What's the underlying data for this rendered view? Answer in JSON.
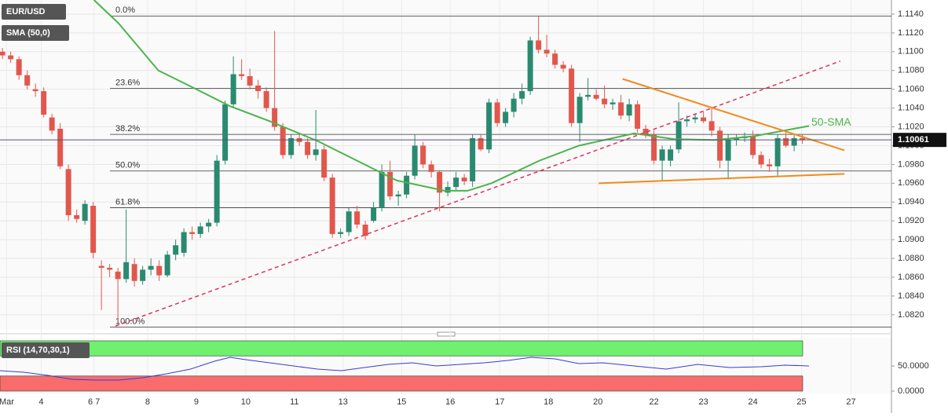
{
  "chart_data": [
    {
      "type": "candlestick",
      "title": "EUR/USD",
      "colors": {
        "up": "#2a8a70",
        "down": "#e2574c"
      },
      "xlim": [
        -0.3,
        107.8
      ],
      "ylim": [
        1.0804,
        1.1155
      ],
      "yticks": [
        {
          "value": 1.082,
          "label": "1.0820"
        },
        {
          "value": 1.084,
          "label": "1.0840"
        },
        {
          "value": 1.086,
          "label": "1.0860"
        },
        {
          "value": 1.088,
          "label": "1.0880"
        },
        {
          "value": 1.09,
          "label": "1.0900"
        },
        {
          "value": 1.092,
          "label": "1.0920"
        },
        {
          "value": 1.094,
          "label": "1.0940"
        },
        {
          "value": 1.096,
          "label": "1.0960"
        },
        {
          "value": 1.098,
          "label": "1.0980"
        },
        {
          "value": 1.1,
          "label": "1.1000"
        },
        {
          "value": 1.102,
          "label": "1.1020"
        },
        {
          "value": 1.104,
          "label": "1.1040"
        },
        {
          "value": 1.106,
          "label": "1.1060"
        },
        {
          "value": 1.108,
          "label": "1.1080"
        },
        {
          "value": 1.11,
          "label": "1.1100"
        },
        {
          "value": 1.112,
          "label": "1.1120"
        },
        {
          "value": 1.114,
          "label": "1.1140"
        }
      ],
      "xticks": [
        {
          "value": 0.5,
          "label": "Mar"
        },
        {
          "value": 4.7,
          "label": "4"
        },
        {
          "value": 11.1,
          "label": "6 7"
        },
        {
          "value": 17.6,
          "label": "8"
        },
        {
          "value": 23.5,
          "label": "9"
        },
        {
          "value": 29.5,
          "label": "10"
        },
        {
          "value": 35.4,
          "label": "11"
        },
        {
          "value": 41.3,
          "label": "13"
        },
        {
          "value": 48.4,
          "label": "15"
        },
        {
          "value": 54.3,
          "label": "16"
        },
        {
          "value": 60.3,
          "label": "17"
        },
        {
          "value": 66.2,
          "label": "18"
        },
        {
          "value": 72.2,
          "label": "20"
        },
        {
          "value": 79.0,
          "label": "22"
        },
        {
          "value": 85.0,
          "label": "23"
        },
        {
          "value": 91.0,
          "label": "24"
        },
        {
          "value": 96.9,
          "label": "25"
        },
        {
          "value": 102.9,
          "label": "27"
        }
      ],
      "ohlc": [
        [
          1.11,
          1.1104,
          1.1092,
          1.1096
        ],
        [
          1.1096,
          1.11,
          1.1088,
          1.1092
        ],
        [
          1.1092,
          1.1095,
          1.107,
          1.1075
        ],
        [
          1.1075,
          1.108,
          1.106,
          1.1064
        ],
        [
          1.106,
          1.1066,
          1.1052,
          1.1058
        ],
        [
          1.1058,
          1.1062,
          1.103,
          1.1033
        ],
        [
          1.103,
          1.1034,
          1.1012,
          1.1016
        ],
        [
          1.1018,
          1.1024,
          1.0975,
          1.0978
        ],
        [
          1.0975,
          1.098,
          1.092,
          1.0926
        ],
        [
          1.0926,
          1.0932,
          1.0918,
          1.0922
        ],
        [
          1.092,
          1.0942,
          1.0916,
          1.0938
        ],
        [
          1.0936,
          1.094,
          1.088,
          1.0886
        ],
        [
          1.0872,
          1.0878,
          1.0825,
          1.087
        ],
        [
          1.087,
          1.0874,
          1.086,
          1.0868
        ],
        [
          1.0866,
          1.087,
          1.0812,
          1.0858
        ],
        [
          1.0858,
          1.0932,
          1.0854,
          1.0876
        ],
        [
          1.0874,
          1.088,
          1.085,
          1.0856
        ],
        [
          1.0856,
          1.0872,
          1.0852,
          1.0868
        ],
        [
          1.0868,
          1.088,
          1.0862,
          1.0872
        ],
        [
          1.0872,
          1.0878,
          1.0856,
          1.0862
        ],
        [
          1.0862,
          1.0888,
          1.086,
          1.0884
        ],
        [
          1.0884,
          1.09,
          1.0878,
          1.0894
        ],
        [
          1.0886,
          1.0912,
          1.0882,
          1.0908
        ],
        [
          1.0908,
          1.0914,
          1.09,
          1.0906
        ],
        [
          1.0906,
          1.0918,
          1.0902,
          1.0914
        ],
        [
          1.0914,
          1.0922,
          1.0908,
          1.0918
        ],
        [
          1.0918,
          1.099,
          1.0914,
          1.0984
        ],
        [
          1.0984,
          1.1048,
          1.098,
          1.1044
        ],
        [
          1.1044,
          1.1095,
          1.104,
          1.1076
        ],
        [
          1.1076,
          1.1092,
          1.107,
          1.1074
        ],
        [
          1.1074,
          1.1082,
          1.106,
          1.1064
        ],
        [
          1.1064,
          1.107,
          1.105,
          1.1058
        ],
        [
          1.1058,
          1.1062,
          1.1036,
          1.104
        ],
        [
          1.104,
          1.1122,
          1.1016,
          1.102
        ],
        [
          1.102,
          1.1024,
          1.0986,
          1.099
        ],
        [
          1.099,
          1.1012,
          1.0986,
          1.1008
        ],
        [
          1.1008,
          1.1014,
          1.1,
          1.1004
        ],
        [
          1.1004,
          1.1008,
          1.0986,
          1.099
        ],
        [
          1.099,
          1.1038,
          1.0984,
          1.0996
        ],
        [
          1.0996,
          1.1,
          1.0962,
          1.0966
        ],
        [
          1.0966,
          1.097,
          1.0902,
          1.0906
        ],
        [
          1.0906,
          1.0912,
          1.0902,
          1.0908
        ],
        [
          1.0908,
          1.0934,
          1.0904,
          1.093
        ],
        [
          1.093,
          1.0936,
          1.0912,
          1.0916
        ],
        [
          1.0916,
          1.092,
          1.09,
          1.0904
        ],
        [
          1.092,
          1.094,
          1.0918,
          1.0934
        ],
        [
          1.0934,
          1.098,
          1.093,
          1.0972
        ],
        [
          1.0972,
          1.0984,
          1.0942,
          1.0946
        ],
        [
          1.0946,
          1.0952,
          1.0936,
          1.0948
        ],
        [
          1.0948,
          1.0972,
          1.0944,
          1.0968
        ],
        [
          1.0968,
          1.1012,
          1.0964,
          1.1
        ],
        [
          1.1,
          1.1004,
          1.0976,
          1.098
        ],
        [
          1.098,
          1.0984,
          1.0966,
          1.0972
        ],
        [
          1.0972,
          1.0974,
          1.093,
          1.095
        ],
        [
          1.095,
          1.0962,
          1.0946,
          1.0956
        ],
        [
          1.0956,
          1.0972,
          1.0952,
          1.0966
        ],
        [
          1.0966,
          1.097,
          1.0958,
          1.0962
        ],
        [
          1.0962,
          1.1012,
          1.0956,
          1.1008
        ],
        [
          1.1008,
          1.1012,
          1.0994,
          1.0996
        ],
        [
          1.0996,
          1.105,
          1.0992,
          1.1046
        ],
        [
          1.1046,
          1.105,
          1.102,
          1.1024
        ],
        [
          1.1024,
          1.104,
          1.102,
          1.1036
        ],
        [
          1.1036,
          1.1056,
          1.103,
          1.105
        ],
        [
          1.105,
          1.1066,
          1.1044,
          1.1058
        ],
        [
          1.1058,
          1.1116,
          1.1054,
          1.1112
        ],
        [
          1.1112,
          1.1138,
          1.1098,
          1.1102
        ],
        [
          1.1102,
          1.1118,
          1.1094,
          1.1098
        ],
        [
          1.1098,
          1.1102,
          1.1082,
          1.1086
        ],
        [
          1.1086,
          1.109,
          1.1078,
          1.1082
        ],
        [
          1.1082,
          1.1086,
          1.102,
          1.1024
        ],
        [
          1.1024,
          1.1056,
          1.1004,
          1.1052
        ],
        [
          1.1052,
          1.1072,
          1.1048,
          1.1054
        ],
        [
          1.1054,
          1.106,
          1.1048,
          1.105
        ],
        [
          1.105,
          1.1064,
          1.104,
          1.1044
        ],
        [
          1.1044,
          1.105,
          1.1038,
          1.1046
        ],
        [
          1.1046,
          1.1054,
          1.1028,
          1.1032
        ],
        [
          1.1032,
          1.105,
          1.1026,
          1.1044
        ],
        [
          1.1044,
          1.1048,
          1.1014,
          1.1018
        ],
        [
          1.1018,
          1.1022,
          1.1008,
          1.1012
        ],
        [
          1.1012,
          1.1016,
          1.098,
          1.0984
        ],
        [
          1.0984,
          1.1,
          1.0962,
          1.0996
        ],
        [
          1.0984,
          1.1,
          1.0978,
          1.0996
        ],
        [
          1.0996,
          1.1046,
          1.0992,
          1.1026
        ],
        [
          1.1026,
          1.1032,
          1.102,
          1.1028
        ],
        [
          1.1028,
          1.1034,
          1.1024,
          1.103
        ],
        [
          1.103,
          1.1036,
          1.1024,
          1.1026
        ],
        [
          1.1026,
          1.104,
          1.101,
          1.1016
        ],
        [
          1.1016,
          1.102,
          1.0976,
          1.0984
        ],
        [
          1.0984,
          1.1012,
          1.0964,
          1.1006
        ],
        [
          1.1006,
          1.1012,
          1.1,
          1.1008
        ],
        [
          1.1008,
          1.1014,
          1.1004,
          1.101
        ],
        [
          1.101,
          1.1016,
          1.0986,
          1.099
        ],
        [
          1.099,
          1.0994,
          1.0976,
          1.098
        ],
        [
          1.098,
          1.0986,
          1.0972,
          1.0978
        ],
        [
          1.0978,
          1.1012,
          1.0968,
          1.1008
        ],
        [
          1.1008,
          1.1014,
          1.0998,
          1.1
        ],
        [
          1.1,
          1.1012,
          1.0994,
          1.1008
        ],
        [
          1.1008,
          1.1012,
          1.1002,
          1.1006
        ]
      ],
      "sma": {
        "name": "SMA (50,0)",
        "color": "#4cb34c",
        "x": [
          11.1,
          14.1,
          18.9,
          23.75,
          27.6,
          32.4,
          38.2,
          43,
          47.8,
          53.6,
          56.4,
          59.3,
          65.1,
          69.9,
          76.6,
          81.4,
          86.3,
          91.1,
          97.8
        ],
        "values": [
          1.1155,
          1.113,
          1.108,
          1.1059,
          1.1042,
          1.1026,
          1.1005,
          1.0984,
          1.0963,
          1.0952,
          1.0952,
          1.096,
          1.0984,
          1.1,
          1.1013,
          1.1007,
          1.1006,
          1.101,
          1.1021
        ]
      },
      "annotation": "50-SMA",
      "fib": [
        {
          "label": "0.0%",
          "value": 1.1138
        },
        {
          "label": "23.6%",
          "value": 1.1061
        },
        {
          "label": "38.2%",
          "value": 1.1012
        },
        {
          "label": "50.0%",
          "value": 1.0973
        },
        {
          "label": "61.8%",
          "value": 1.0934
        },
        {
          "label": "100.0%",
          "value": 1.0807
        }
      ],
      "trendlines": [
        {
          "color": "#e0305a",
          "dashed": true,
          "x": [
            13.7,
            101.6
          ],
          "values": [
            1.0808,
            1.109
          ]
        },
        {
          "color": "#f28a1c",
          "dashed": false,
          "x": [
            75.2,
            102.1
          ],
          "values": [
            1.1071,
            1.0995
          ]
        },
        {
          "color": "#f28a1c",
          "dashed": false,
          "x": [
            72.3,
            102.1
          ],
          "values": [
            1.096,
            1.097
          ]
        }
      ],
      "last_price": 1.10061
    },
    {
      "type": "line",
      "title": "RSI (14,70,30,1)",
      "xlim": [
        -0.3,
        107.8
      ],
      "ylim": [
        0,
        100
      ],
      "yticks": [
        {
          "value": 50,
          "label": "50.0000"
        },
        {
          "value": 0,
          "label": "0.0000"
        }
      ],
      "bands": [
        {
          "from": 70,
          "to": 100,
          "color": "#6ff06f"
        },
        {
          "from": 0,
          "to": 30,
          "color": "#f86c6c"
        }
      ],
      "series": [
        {
          "color": "#3a3ad8",
          "x": [
            -0.3,
            2.6,
            5.5,
            8.4,
            11.3,
            14.1,
            17,
            19.9,
            22.8,
            25.7,
            27.6,
            29.5,
            32.4,
            35.3,
            38.2,
            41.1,
            43.9,
            46.8,
            49.7,
            52.6,
            55.5,
            58.4,
            61.3,
            64.1,
            67,
            69.9,
            72.8,
            76.6,
            80.5,
            84.3,
            88.2,
            92,
            94.9,
            97.8
          ],
          "values": [
            40.6,
            37.5,
            31.3,
            23.4,
            21.9,
            21.9,
            26.6,
            34.4,
            43.8,
            59.4,
            67.2,
            62.5,
            56.3,
            50,
            43.8,
            40.6,
            46.9,
            53.1,
            56.3,
            50,
            53.1,
            56.3,
            60.9,
            67.2,
            64.1,
            54.7,
            56.3,
            50,
            43.8,
            53.1,
            46.9,
            48.4,
            51.6,
            50
          ]
        }
      ]
    }
  ]
}
